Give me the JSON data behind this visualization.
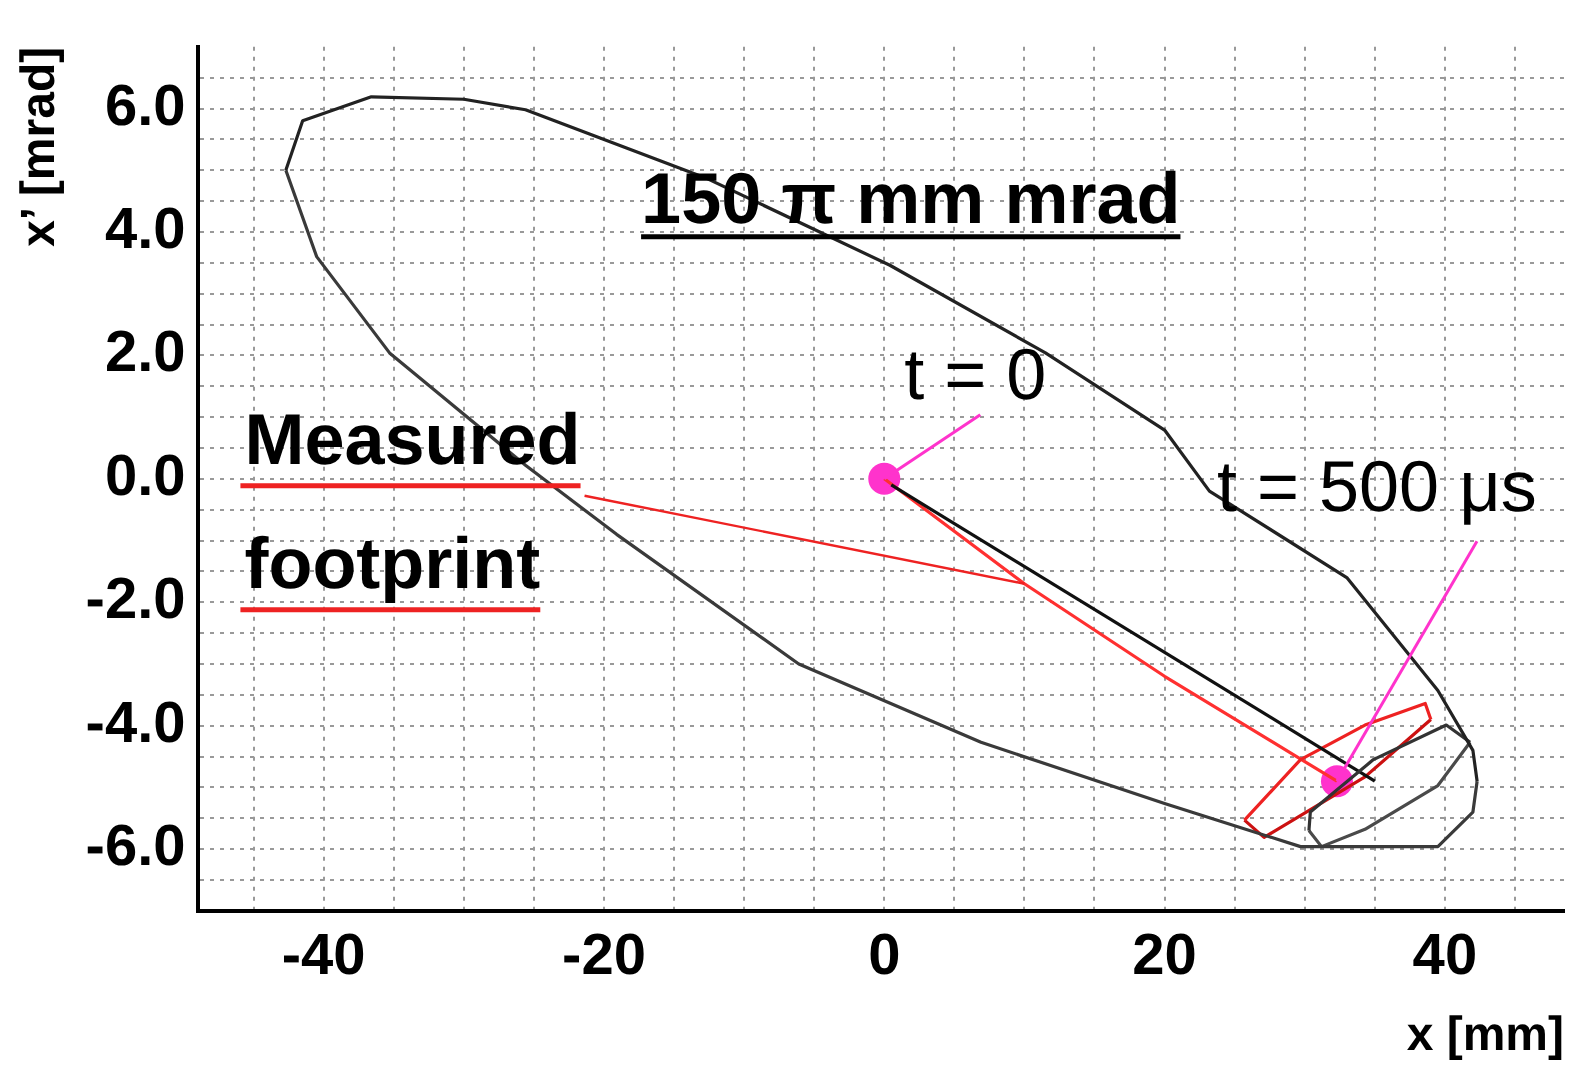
{
  "chart_data": {
    "type": "line",
    "xlabel": "x [mm]",
    "ylabel": "x’ [mrad]",
    "xlim": [
      -49,
      48.5
    ],
    "ylim": [
      -7,
      7
    ],
    "xticks": [
      {
        "value": -45,
        "label": null
      },
      {
        "value": -40,
        "label": "-40"
      },
      {
        "value": -35,
        "label": null
      },
      {
        "value": -30,
        "label": null
      },
      {
        "value": -25,
        "label": null
      },
      {
        "value": -20,
        "label": "-20"
      },
      {
        "value": -15,
        "label": null
      },
      {
        "value": -10,
        "label": null
      },
      {
        "value": -5,
        "label": null
      },
      {
        "value": 0,
        "label": "0"
      },
      {
        "value": 5,
        "label": null
      },
      {
        "value": 10,
        "label": null
      },
      {
        "value": 15,
        "label": null
      },
      {
        "value": 20,
        "label": "20"
      },
      {
        "value": 25,
        "label": null
      },
      {
        "value": 30,
        "label": null
      },
      {
        "value": 35,
        "label": null
      },
      {
        "value": 40,
        "label": "40"
      },
      {
        "value": 45,
        "label": null
      }
    ],
    "yticks": [
      {
        "value": -6.5,
        "label": null
      },
      {
        "value": -6,
        "label": "-6.0"
      },
      {
        "value": -5.5,
        "label": null
      },
      {
        "value": -5,
        "label": null
      },
      {
        "value": -4.5,
        "label": null
      },
      {
        "value": -4,
        "label": "-4.0"
      },
      {
        "value": -3.5,
        "label": null
      },
      {
        "value": -3,
        "label": null
      },
      {
        "value": -2.5,
        "label": null
      },
      {
        "value": -2,
        "label": "-2.0"
      },
      {
        "value": -1.5,
        "label": null
      },
      {
        "value": -1,
        "label": null
      },
      {
        "value": -0.5,
        "label": null
      },
      {
        "value": 0,
        "label": "0.0"
      },
      {
        "value": 0.5,
        "label": null
      },
      {
        "value": 1,
        "label": null
      },
      {
        "value": 1.5,
        "label": null
      },
      {
        "value": 2,
        "label": "2.0"
      },
      {
        "value": 2.5,
        "label": null
      },
      {
        "value": 3,
        "label": null
      },
      {
        "value": 3.5,
        "label": null
      },
      {
        "value": 4,
        "label": "4.0"
      },
      {
        "value": 4.5,
        "label": null
      },
      {
        "value": 5,
        "label": null
      },
      {
        "value": 5.5,
        "label": null
      },
      {
        "value": 6,
        "label": "6.0"
      },
      {
        "value": 6.5,
        "label": null
      }
    ],
    "grid": true,
    "line_style": "solid",
    "series": [
      {
        "color": "#222222",
        "x": [
          -42.7,
          -41.5,
          -36.6,
          -30,
          -25.6,
          -12.6,
          0.4,
          11.5,
          20,
          23.2,
          33,
          39.5,
          42,
          42.3
        ],
        "values": [
          5.0,
          5.8,
          6.19,
          6.15,
          5.98,
          4.86,
          3.46,
          2.04,
          0.79,
          -0.2,
          -1.6,
          -3.43,
          -4.4,
          -4.9
        ]
      },
      {
        "color": "#3a3a3a",
        "x": [
          -42.7,
          -40.5,
          -35.3,
          -25.6,
          -19.1,
          -6.1,
          6.9,
          20,
          29.7,
          39.5,
          42,
          42.3
        ],
        "values": [
          5.0,
          3.6,
          2.04,
          0.22,
          -0.9,
          -3.0,
          -4.27,
          -5.26,
          -5.96,
          -5.96,
          -5.4,
          -4.9
        ]
      },
      {
        "color": "#333333",
        "x": [
          30.3,
          30.4,
          34.9,
          40.1,
          41.8
        ],
        "values": [
          -5.7,
          -5.4,
          -4.55,
          -3.99,
          -4.27
        ]
      },
      {
        "color": "#4a4a4a",
        "x": [
          30.3,
          31.2,
          34.3,
          39.5,
          41.8
        ],
        "values": [
          -5.7,
          -5.96,
          -5.68,
          -4.97,
          -4.27
        ]
      },
      {
        "color": "#111111",
        "x": [
          0.5,
          35
        ],
        "values": [
          -0.1,
          -4.9
        ]
      },
      {
        "color": "#ee2222",
        "x": [
          25.7,
          29.7,
          34.3,
          38.6,
          39
        ],
        "values": [
          -5.53,
          -4.55,
          -3.99,
          -3.64,
          -3.9
        ]
      },
      {
        "color": "#cc1111",
        "x": [
          25.7,
          27.1,
          29.1,
          34.3,
          39
        ],
        "values": [
          -5.53,
          -5.81,
          -5.54,
          -4.83,
          -3.9
        ]
      },
      {
        "color": "#ff3030",
        "x": [
          0,
          10,
          20,
          32.3
        ],
        "values": [
          0,
          -1.7,
          -3.2,
          -4.9
        ]
      },
      {
        "type": "scatter",
        "marker": "circle",
        "color": "#ff33cc",
        "x": [
          0,
          32.3
        ],
        "values": [
          0,
          -4.9
        ]
      }
    ],
    "annotations": [
      "150 π mm mrad",
      {
        "text": "t = 0",
        "x": 0,
        "y": 0
      },
      {
        "text": "t = 500 μs",
        "x": 32.3,
        "y": -4.9
      },
      {
        "text": "Measured footprint",
        "x": 10,
        "y": -1.7
      }
    ]
  }
}
